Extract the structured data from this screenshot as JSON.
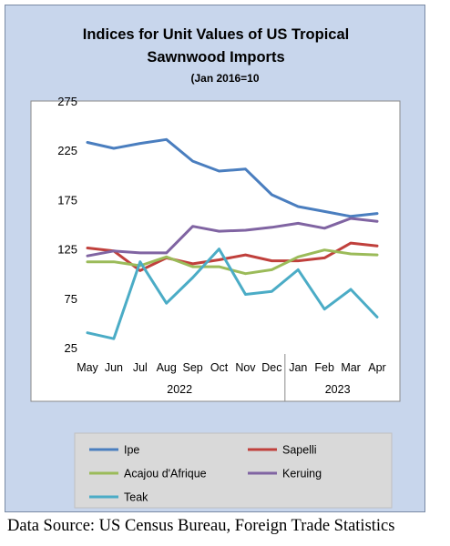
{
  "chart_data": {
    "type": "line",
    "title": "Indices for Unit Values of US Tropical",
    "title_line2": "Sawnwood Imports",
    "subtitle": "(Jan 2016=10",
    "categories": [
      "May",
      "Jun",
      "Jul",
      "Aug",
      "Sep",
      "Oct",
      "Nov",
      "Dec",
      "Jan",
      "Feb",
      "Mar",
      "Apr"
    ],
    "year_groups": [
      {
        "label": "2022",
        "from": 0,
        "to": 7
      },
      {
        "label": "2023",
        "from": 8,
        "to": 11
      }
    ],
    "ylim": [
      25,
      275
    ],
    "yticks": [
      "25",
      "75",
      "125",
      "175",
      "225",
      "275"
    ],
    "grid": false,
    "legend_position": "bottom",
    "series": [
      {
        "name": "Ipe",
        "color": "#4a7ebf",
        "values": [
          233,
          227,
          232,
          236,
          214,
          204,
          206,
          180,
          168,
          163,
          158,
          161
        ]
      },
      {
        "name": "Sapelli",
        "color": "#c0403c",
        "values": [
          126,
          123,
          103,
          116,
          110,
          114,
          119,
          113,
          113,
          116,
          131,
          128
        ]
      },
      {
        "name": "Acajou d'Afrique",
        "color": "#9bbb59",
        "values": [
          112,
          112,
          108,
          117,
          107,
          107,
          100,
          104,
          117,
          124,
          120,
          119
        ]
      },
      {
        "name": "Keruing",
        "color": "#8064a2",
        "values": [
          118,
          123,
          121,
          121,
          148,
          143,
          144,
          147,
          151,
          146,
          156,
          153
        ]
      },
      {
        "name": "Teak",
        "color": "#4bacc6",
        "values": [
          40,
          34,
          112,
          70,
          96,
          125,
          79,
          82,
          104,
          64,
          84,
          56
        ]
      }
    ]
  },
  "source": "Data Source: US Census Bureau, Foreign Trade Statistics"
}
